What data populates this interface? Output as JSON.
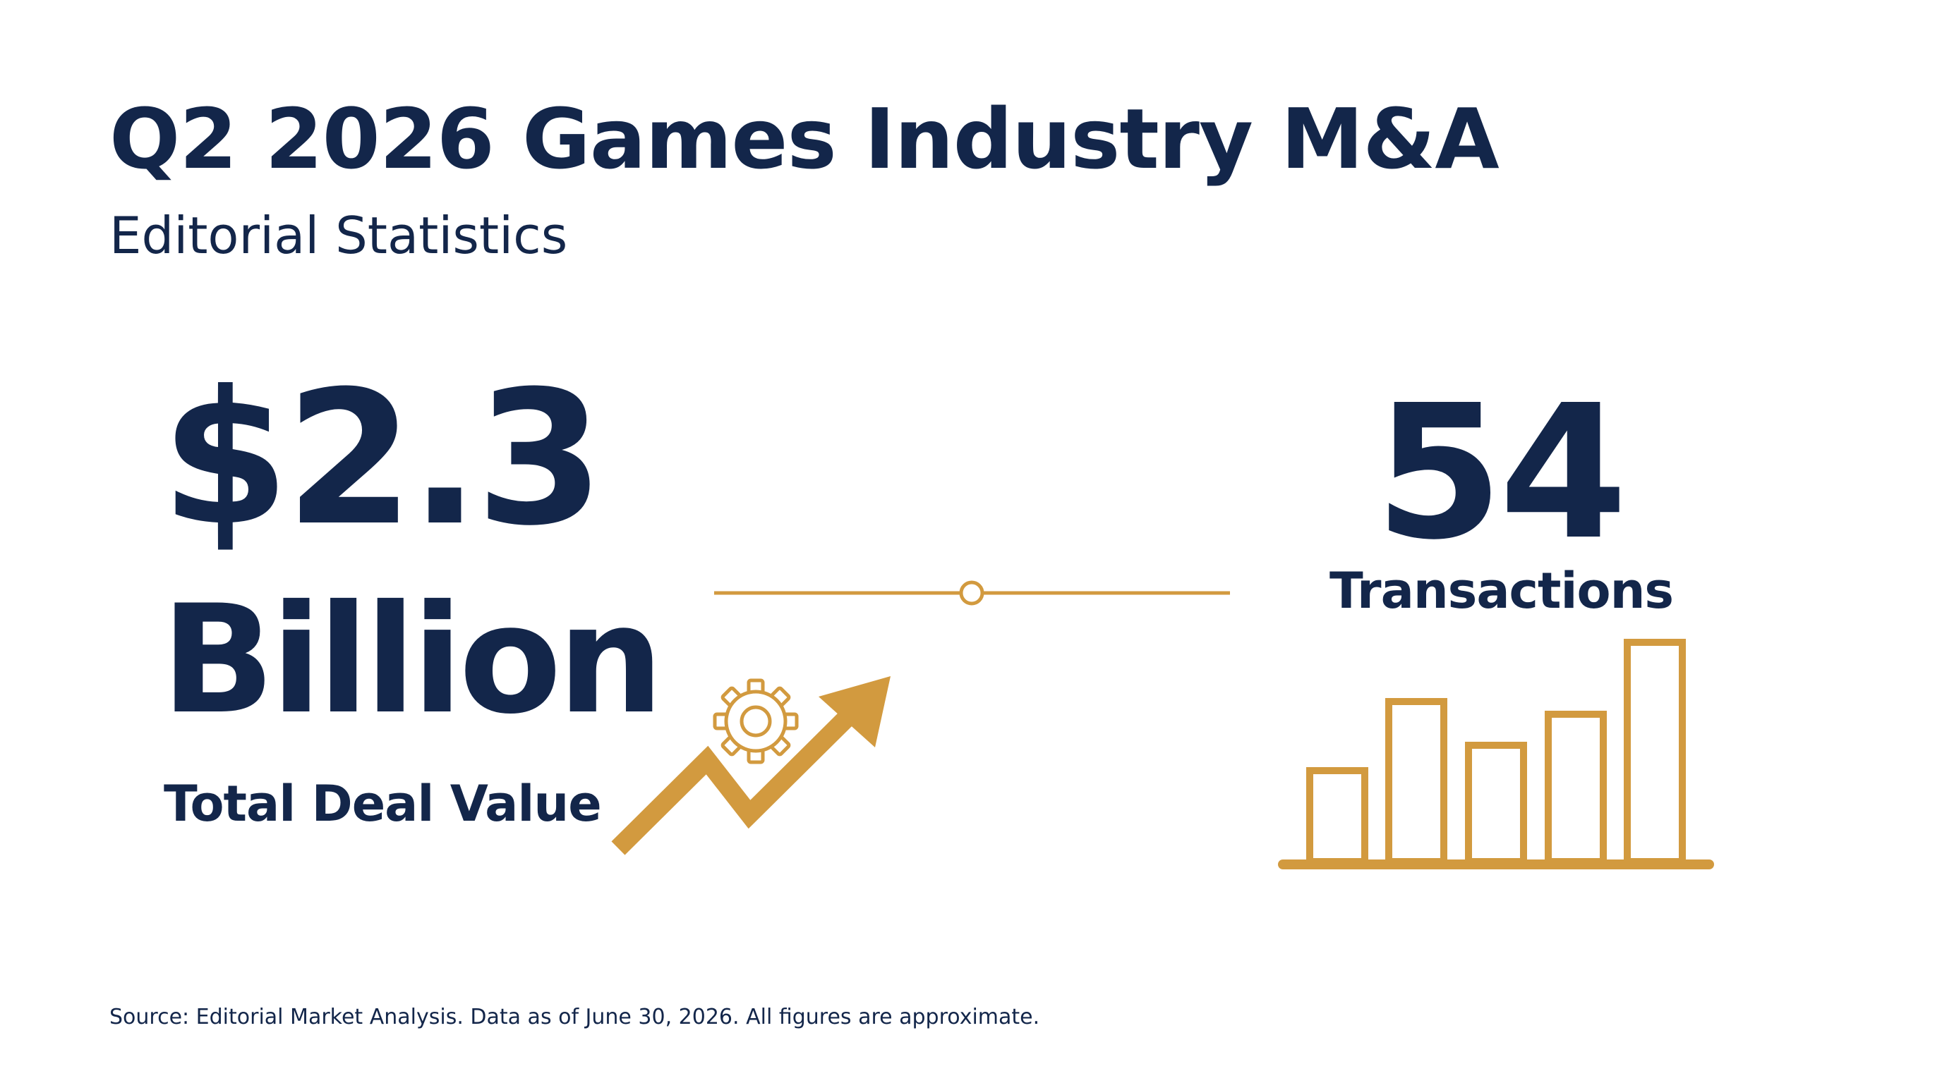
{
  "header": {
    "title": "Q2 2026 Games Industry M&A",
    "subtitle": "Editorial Statistics"
  },
  "stats": {
    "deal_value": {
      "line1": "$2.3",
      "line2": "Billion",
      "caption": "Total Deal Value"
    },
    "transactions": {
      "number": "54",
      "caption": "Transactions"
    }
  },
  "icons": [
    "gear-icon",
    "trend-up-arrow-icon",
    "bar-chart-icon",
    "divider-circle-marker"
  ],
  "footer": {
    "source": "Source: Editorial Market Analysis. Data as of June 30, 2026. All figures are approximate."
  },
  "colors": {
    "navy": "#13264a",
    "gold": "#d29a3f",
    "background": "#ffffff"
  }
}
